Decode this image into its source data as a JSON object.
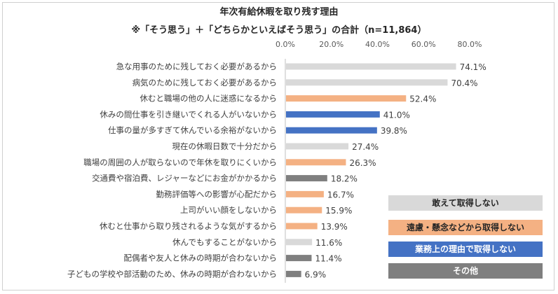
{
  "title": "年次有給休暇を取り残す理由",
  "subtitle": "※「そう思う」＋「どちらかといえばそう思う」の合計（n=11,864）",
  "colors": {
    "light_gray": "#d9d9d9",
    "salmon": "#f4b183",
    "blue": "#4472c4",
    "dark_gray": "#7f7f7f"
  },
  "chart_data": {
    "type": "bar",
    "orientation": "horizontal",
    "title": "年次有給休暇を取り残す理由",
    "subtitle": "※「そう思う」＋「どちらかといえばそう思う」の合計（n=11,864）",
    "xlim": [
      0,
      80
    ],
    "x_ticks": [
      "0.0%",
      "20.0%",
      "40.0%",
      "60.0%",
      "80.0%"
    ],
    "x_tick_values": [
      0,
      20,
      40,
      60,
      80
    ],
    "legend_position": "bottom-right",
    "grid": false,
    "categories": [
      "急な用事のために残しておく必要があるから",
      "病気のために残しておく必要があるから",
      "休むと職場の他の人に迷惑になるから",
      "休みの間仕事を引き継いでくれる人がいないから",
      "仕事の量が多すぎて休んでいる余裕がないから",
      "現在の休暇日数で十分だから",
      "職場の周囲の人が取らないので年休を取りにくいから",
      "交通費や宿泊費、レジャーなどにお金がかかるから",
      "勤務評価等への影響が心配だから",
      "上司がいい顔をしないから",
      "休むと仕事から取り残されるような気がするから",
      "休んでもすることがないから",
      "配偶者や友人と休みの時期が合わないから",
      "子どもの学校や部活動のため、休みの時期が合わないから"
    ],
    "values": [
      74.1,
      70.4,
      52.4,
      41.0,
      39.8,
      27.4,
      26.3,
      18.2,
      16.7,
      15.9,
      13.9,
      11.6,
      11.4,
      6.9
    ],
    "value_labels": [
      "74.1%",
      "70.4%",
      "52.4%",
      "41.0%",
      "39.8%",
      "27.4%",
      "26.3%",
      "18.2%",
      "16.7%",
      "15.9%",
      "13.9%",
      "11.6%",
      "11.4%",
      "6.9%"
    ],
    "bar_groups": [
      "deliberate",
      "deliberate",
      "concern",
      "work",
      "work",
      "deliberate",
      "concern",
      "other",
      "concern",
      "concern",
      "concern",
      "deliberate",
      "other",
      "other"
    ],
    "legend": [
      {
        "key": "deliberate",
        "label": "敢えて取得しない",
        "color": "#d9d9d9",
        "text_color": "#262626"
      },
      {
        "key": "concern",
        "label": "遠慮・懸念などから取得しない",
        "color": "#f4b183",
        "text_color": "#262626"
      },
      {
        "key": "work",
        "label": "業務上の理由で取得しない",
        "color": "#4472c4",
        "text_color": "#ffffff"
      },
      {
        "key": "other",
        "label": "その他",
        "color": "#7f7f7f",
        "text_color": "#ffffff"
      }
    ]
  }
}
